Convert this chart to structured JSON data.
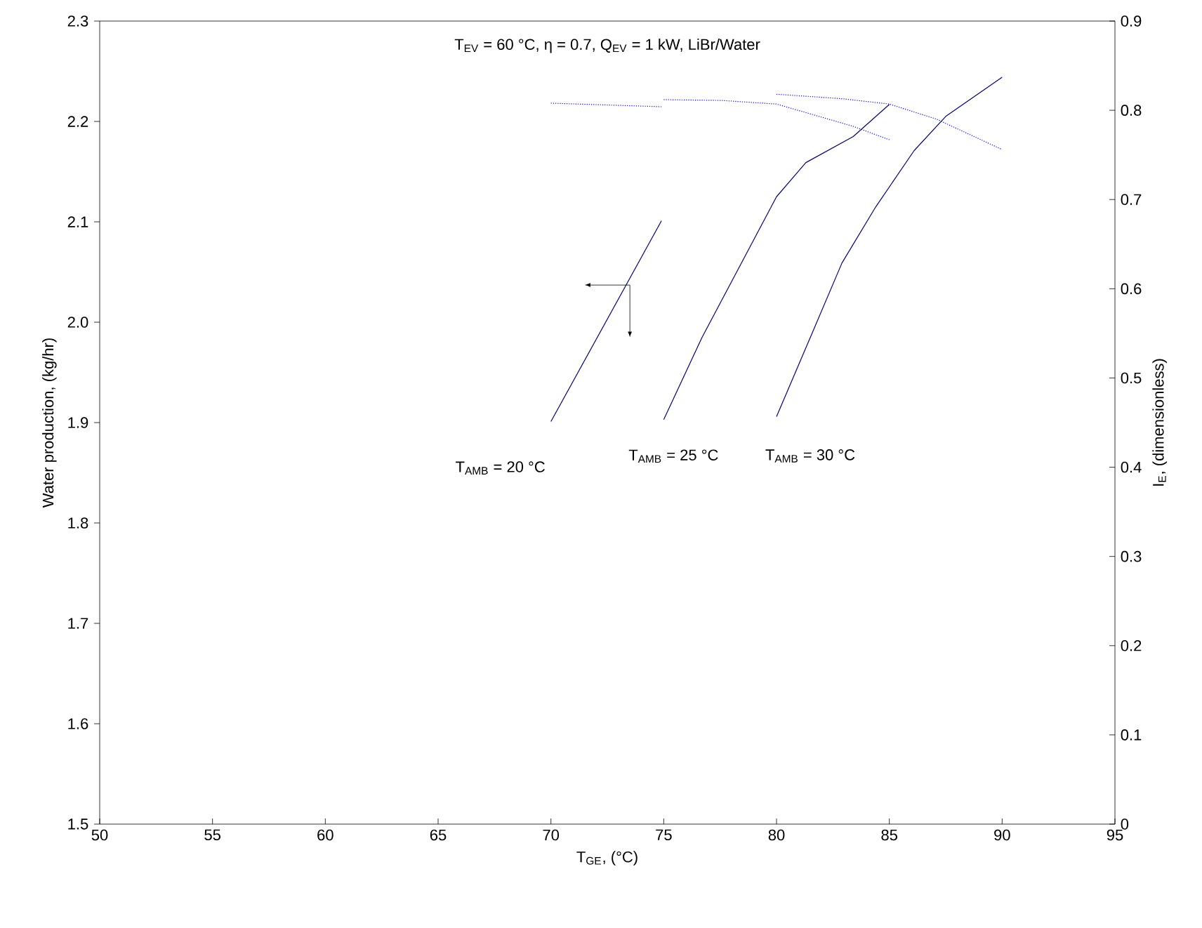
{
  "chart_data": {
    "type": "line",
    "xlabel": "T$_{GE}$, (°C)",
    "ylabel": "Water production, (kg/hr)",
    "y2label": "I$_{E}$, (dimensionless)",
    "xlim": [
      50,
      95
    ],
    "xticks": [
      50,
      55,
      60,
      65,
      70,
      75,
      80,
      85,
      90,
      95
    ],
    "ylim": [
      1.5,
      2.3
    ],
    "yticks": [
      1.5,
      1.6,
      1.7,
      1.8,
      1.9,
      {
        "value": 2.0,
        "label": "2.0"
      },
      2.1,
      2.2,
      2.3
    ],
    "y2lim": [
      0,
      0.9
    ],
    "y2ticks": [
      0,
      0.1,
      0.2,
      0.3,
      0.4,
      0.5,
      0.6,
      0.7,
      0.8,
      0.9
    ],
    "grid": false,
    "marker": "none",
    "series": [
      {
        "color": "#000080",
        "line_style": "solid",
        "x": [
          70,
          74.9
        ],
        "values": [
          1.901,
          2.101
        ]
      },
      {
        "color": "#000080",
        "line_style": "solid",
        "x": [
          75,
          76.7,
          80,
          81.3,
          83.4,
          85
        ],
        "values": [
          1.903,
          1.985,
          2.125,
          2.159,
          2.185,
          2.217
        ]
      },
      {
        "color": "#000080",
        "line_style": "solid",
        "x": [
          80,
          81.5,
          82.9,
          84.4,
          86.1,
          87.5,
          90
        ],
        "values": [
          1.906,
          1.985,
          2.059,
          2.115,
          2.171,
          2.205,
          2.244
        ]
      },
      {
        "color": "#0000ff",
        "line_style": "dotted",
        "axis": "y2",
        "x": [
          70,
          74.9
        ],
        "values": [
          0.808,
          0.804
        ]
      },
      {
        "color": "#0000ff",
        "line_style": "dotted",
        "axis": "y2",
        "x": [
          75,
          77.6,
          80,
          83.4,
          85
        ],
        "values": [
          0.812,
          0.811,
          0.807,
          0.782,
          0.767
        ]
      },
      {
        "color": "#0000ff",
        "line_style": "dotted",
        "axis": "y2",
        "x": [
          80,
          82.9,
          85,
          87.1,
          90
        ],
        "values": [
          0.818,
          0.813,
          0.807,
          0.79,
          0.756
        ]
      }
    ],
    "annotations": [
      "T$_{EV}$ = 60 °C, η = 0.7, Q$_{EV}$ = 1 kW, LiBr/Water",
      "T$_{AMB}$ = 20 °C",
      "T$_{AMB}$ = 25 °C",
      "T$_{AMB}$ = 30 °C"
    ]
  }
}
